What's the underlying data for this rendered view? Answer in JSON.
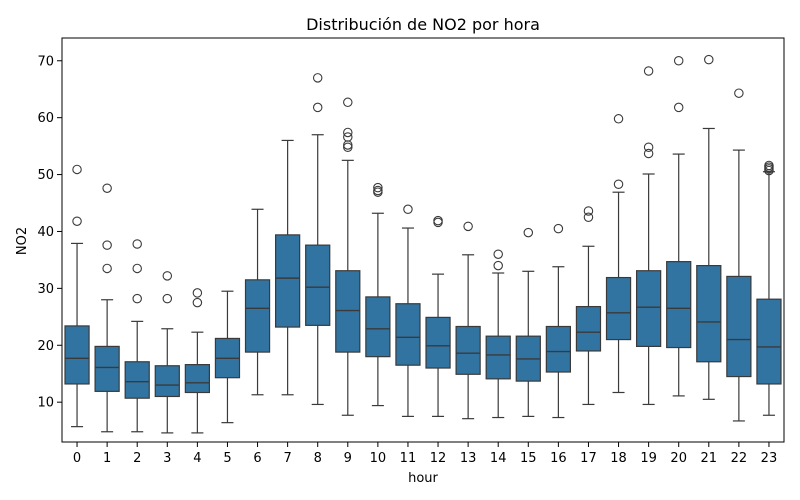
{
  "chart_data": {
    "type": "box",
    "title": "Distribución de NO2 por hora",
    "xlabel": "hour",
    "ylabel": "NO2",
    "ylim": [
      3,
      74
    ],
    "yticks": [
      10,
      20,
      30,
      40,
      50,
      60,
      70
    ],
    "grid": false,
    "legend": "none",
    "box_color": "#3274a1",
    "line_color": "#3a3a3a",
    "categories": [
      "0",
      "1",
      "2",
      "3",
      "4",
      "5",
      "6",
      "7",
      "8",
      "9",
      "10",
      "11",
      "12",
      "13",
      "14",
      "15",
      "16",
      "17",
      "18",
      "19",
      "20",
      "21",
      "22",
      "23"
    ],
    "boxes": [
      {
        "whislo": 5.7,
        "q1": 13.2,
        "med": 17.7,
        "q3": 23.4,
        "whishi": 37.9,
        "fliers": [
          41.8,
          50.9
        ]
      },
      {
        "whislo": 4.8,
        "q1": 11.9,
        "med": 16.1,
        "q3": 19.8,
        "whishi": 28.0,
        "fliers": [
          33.5,
          37.6,
          47.6
        ]
      },
      {
        "whislo": 4.8,
        "q1": 10.7,
        "med": 13.6,
        "q3": 17.1,
        "whishi": 24.2,
        "fliers": [
          28.2,
          33.5,
          37.8
        ]
      },
      {
        "whislo": 4.6,
        "q1": 11.0,
        "med": 13.0,
        "q3": 16.4,
        "whishi": 22.9,
        "fliers": [
          28.2,
          32.2
        ]
      },
      {
        "whislo": 4.6,
        "q1": 11.7,
        "med": 13.4,
        "q3": 16.6,
        "whishi": 22.3,
        "fliers": [
          27.5,
          29.2
        ]
      },
      {
        "whislo": 6.4,
        "q1": 14.3,
        "med": 17.7,
        "q3": 21.2,
        "whishi": 29.5,
        "fliers": []
      },
      {
        "whislo": 11.3,
        "q1": 18.8,
        "med": 26.5,
        "q3": 31.5,
        "whishi": 43.9,
        "fliers": []
      },
      {
        "whislo": 11.3,
        "q1": 23.2,
        "med": 31.8,
        "q3": 39.4,
        "whishi": 56.0,
        "fliers": []
      },
      {
        "whislo": 9.6,
        "q1": 23.5,
        "med": 30.2,
        "q3": 37.6,
        "whishi": 57.0,
        "fliers": [
          61.8,
          67.0
        ]
      },
      {
        "whislo": 7.7,
        "q1": 18.8,
        "med": 26.1,
        "q3": 33.1,
        "whishi": 52.5,
        "fliers": [
          54.8,
          55.2,
          56.6,
          57.4,
          62.7
        ]
      },
      {
        "whislo": 9.4,
        "q1": 18.0,
        "med": 22.9,
        "q3": 28.5,
        "whishi": 43.2,
        "fliers": [
          46.9,
          47.2,
          47.7
        ]
      },
      {
        "whislo": 7.5,
        "q1": 16.5,
        "med": 21.4,
        "q3": 27.3,
        "whishi": 40.6,
        "fliers": [
          43.9
        ]
      },
      {
        "whislo": 7.5,
        "q1": 16.0,
        "med": 19.9,
        "q3": 24.9,
        "whishi": 32.5,
        "fliers": [
          41.6,
          41.9
        ]
      },
      {
        "whislo": 7.1,
        "q1": 14.9,
        "med": 18.6,
        "q3": 23.3,
        "whishi": 35.9,
        "fliers": [
          40.9
        ]
      },
      {
        "whislo": 7.3,
        "q1": 14.1,
        "med": 18.3,
        "q3": 21.6,
        "whishi": 32.7,
        "fliers": [
          34.0,
          36.0
        ]
      },
      {
        "whislo": 7.5,
        "q1": 13.7,
        "med": 17.6,
        "q3": 21.6,
        "whishi": 33.0,
        "fliers": [
          39.8
        ]
      },
      {
        "whislo": 7.3,
        "q1": 15.3,
        "med": 18.9,
        "q3": 23.3,
        "whishi": 33.8,
        "fliers": [
          40.5
        ]
      },
      {
        "whislo": 9.6,
        "q1": 19.0,
        "med": 22.3,
        "q3": 26.8,
        "whishi": 37.4,
        "fliers": [
          42.5,
          43.6
        ]
      },
      {
        "whislo": 11.7,
        "q1": 21.0,
        "med": 25.7,
        "q3": 31.9,
        "whishi": 46.9,
        "fliers": [
          48.3,
          59.8
        ]
      },
      {
        "whislo": 9.6,
        "q1": 19.8,
        "med": 26.7,
        "q3": 33.1,
        "whishi": 50.1,
        "fliers": [
          53.7,
          54.8,
          68.2
        ]
      },
      {
        "whislo": 11.1,
        "q1": 19.6,
        "med": 26.5,
        "q3": 34.7,
        "whishi": 53.6,
        "fliers": [
          61.8,
          70.0
        ]
      },
      {
        "whislo": 10.5,
        "q1": 17.1,
        "med": 24.1,
        "q3": 34.0,
        "whishi": 58.1,
        "fliers": [
          70.2
        ]
      },
      {
        "whislo": 6.7,
        "q1": 14.5,
        "med": 21.0,
        "q3": 32.1,
        "whishi": 54.3,
        "fliers": [
          64.3
        ]
      },
      {
        "whislo": 7.7,
        "q1": 13.2,
        "med": 19.7,
        "q3": 28.1,
        "whishi": 50.5,
        "fliers": [
          50.7,
          51.0,
          51.3,
          51.6
        ]
      }
    ]
  }
}
